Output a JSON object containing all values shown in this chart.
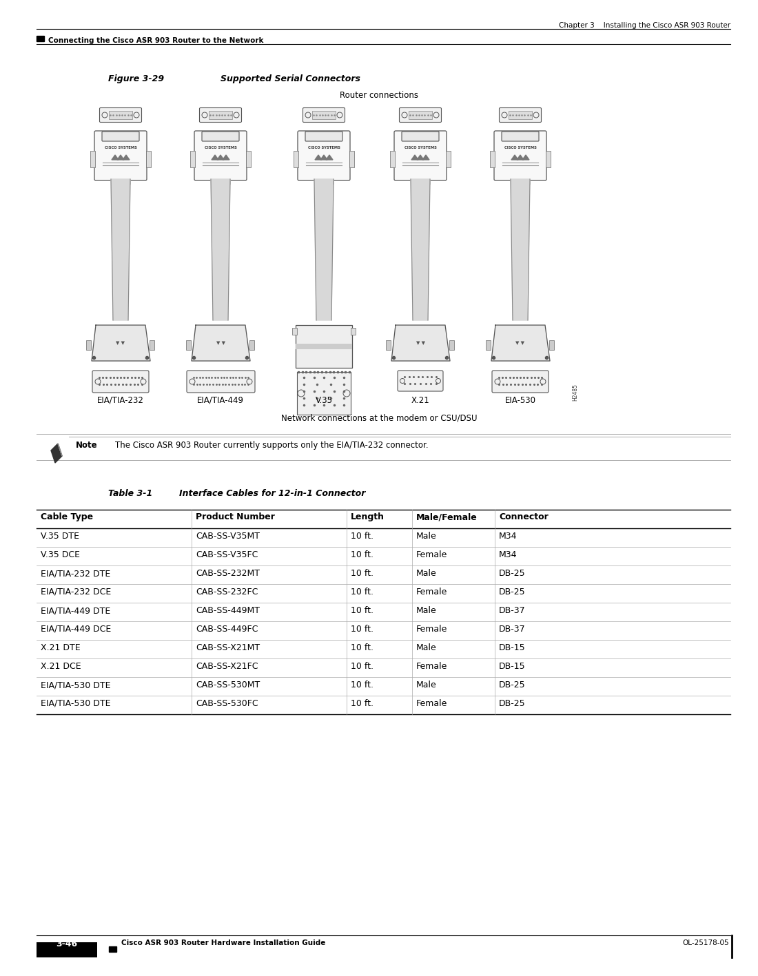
{
  "page_header_right": "Chapter 3    Installing the Cisco ASR 903 Router",
  "page_header_left": "Connecting the Cisco ASR 903 Router to the Network",
  "figure_label": "Figure 3-29",
  "figure_title": "Supported Serial Connectors",
  "router_connections_label": "Router connections",
  "network_connections_label": "Network connections at the modem or CSU/DSU",
  "connector_labels": [
    "EIA/TIA-232",
    "EIA/TIA-449",
    "V.35",
    "X.21",
    "EIA-530"
  ],
  "note_label": "Note",
  "note_text": "The Cisco ASR 903 Router currently supports only the EIA/TIA-232 connector.",
  "table_label": "Table 3-1",
  "table_title": "Interface Cables for 12-in-1 Connector",
  "table_headers": [
    "Cable Type",
    "Product Number",
    "Length",
    "Male/Female",
    "Connector"
  ],
  "table_rows": [
    [
      "V.35 DTE",
      "CAB-SS-V35MT",
      "10 ft.",
      "Male",
      "M34"
    ],
    [
      "V.35 DCE",
      "CAB-SS-V35FC",
      "10 ft.",
      "Female",
      "M34"
    ],
    [
      "EIA/TIA-232 DTE",
      "CAB-SS-232MT",
      "10 ft.",
      "Male",
      "DB-25"
    ],
    [
      "EIA/TIA-232 DCE",
      "CAB-SS-232FC",
      "10 ft.",
      "Female",
      "DB-25"
    ],
    [
      "EIA/TIA-449 DTE",
      "CAB-SS-449MT",
      "10 ft.",
      "Male",
      "DB-37"
    ],
    [
      "EIA/TIA-449 DCE",
      "CAB-SS-449FC",
      "10 ft.",
      "Female",
      "DB-37"
    ],
    [
      "X.21 DTE",
      "CAB-SS-X21MT",
      "10 ft.",
      "Male",
      "DB-15"
    ],
    [
      "X.21 DCE",
      "CAB-SS-X21FC",
      "10 ft.",
      "Female",
      "DB-15"
    ],
    [
      "EIA/TIA-530 DTE",
      "CAB-SS-530MT",
      "10 ft.",
      "Male",
      "DB-25"
    ],
    [
      "EIA/TIA-530 DTE",
      "CAB-SS-530FC",
      "10 ft.",
      "Female",
      "DB-25"
    ]
  ],
  "page_number": "3-46",
  "page_footer_center": "Cisco ASR 903 Router Hardware Installation Guide",
  "page_footer_right": "OL-25178-05",
  "bg_color": "#ffffff",
  "h2485_label": "H2485"
}
